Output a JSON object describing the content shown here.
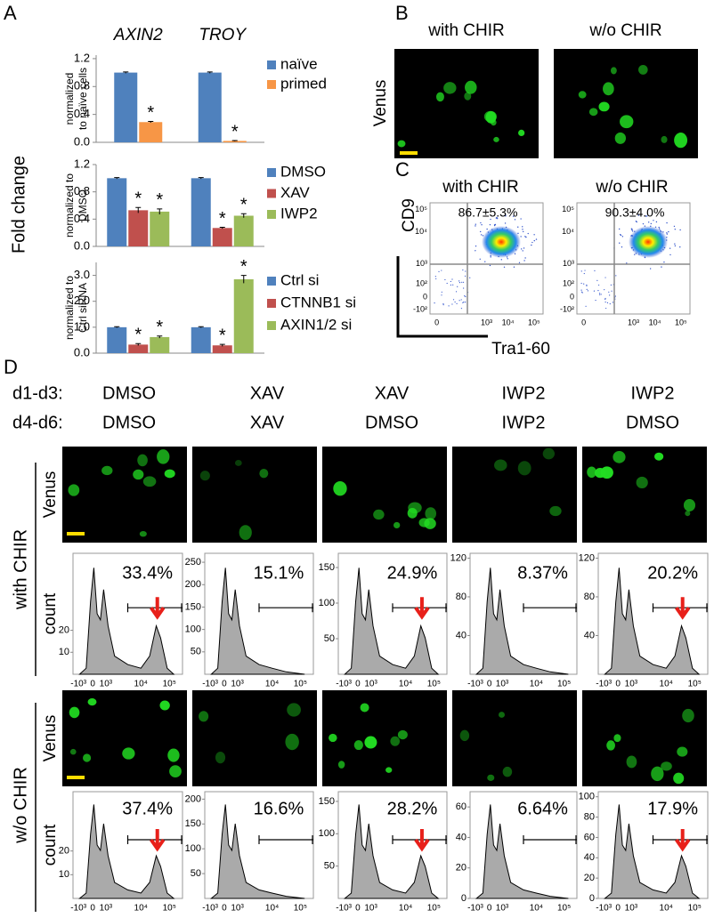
{
  "panel_labels": [
    "A",
    "B",
    "C",
    "D"
  ],
  "panel_a": {
    "y_title": "Fold change"
  },
  "chart_data": [
    {
      "type": "bar",
      "categories": [
        "AXIN2",
        "TROY"
      ],
      "y_label": [
        "normalized",
        "to naïve cells"
      ],
      "ylim": [
        0,
        1.25
      ],
      "yticks": [
        {
          "value": 0,
          "label": "0.0"
        },
        0.4,
        0.8,
        1.2
      ],
      "series": [
        {
          "name": "naïve",
          "color": "#4f81bd",
          "values": [
            1.0,
            1.0
          ],
          "errors": [
            0.01,
            0.01
          ],
          "annotations": [
            null,
            null
          ]
        },
        {
          "name": "primed",
          "color": "#f79646",
          "values": [
            0.29,
            0.02
          ],
          "errors": [
            0.01,
            0.005
          ],
          "annotations": [
            "*",
            "*"
          ]
        }
      ]
    },
    {
      "type": "bar",
      "y_label": [
        "normalized to",
        "DMSO"
      ],
      "ylim": [
        0,
        1.2
      ],
      "yticks": [
        {
          "value": 0,
          "label": "0.0"
        },
        0.4,
        0.8,
        1.2
      ],
      "series": [
        {
          "name": "DMSO",
          "color": "#4f81bd",
          "values": [
            1.0,
            1.0
          ],
          "errors": [
            0.01,
            0.01
          ],
          "annotations": [
            null,
            null
          ]
        },
        {
          "name": "XAV",
          "color": "#c0504d",
          "values": [
            0.53,
            0.27
          ],
          "errors": [
            0.04,
            0.01
          ],
          "annotations": [
            "*",
            "*"
          ]
        },
        {
          "name": "IWP2",
          "color": "#9bbb59",
          "values": [
            0.51,
            0.45
          ],
          "errors": [
            0.04,
            0.03
          ],
          "annotations": [
            "*",
            "*"
          ]
        }
      ]
    },
    {
      "type": "bar",
      "y_label": [
        "normalized to",
        "Ctrl siRNA"
      ],
      "ylim": [
        0,
        3.5
      ],
      "yticks": [
        {
          "value": 0,
          "label": "0.0"
        },
        {
          "value": 1,
          "label": "1.0"
        },
        {
          "value": 2,
          "label": "2.0"
        },
        {
          "value": 3,
          "label": "3.0"
        }
      ],
      "series": [
        {
          "name": "Ctrl si",
          "color": "#4f81bd",
          "values": [
            1.0,
            1.0
          ],
          "errors": [
            0.02,
            0.02
          ],
          "annotations": [
            null,
            null
          ]
        },
        {
          "name": "CTNNB1 si",
          "color": "#c0504d",
          "values": [
            0.33,
            0.3
          ],
          "errors": [
            0.04,
            0.04
          ],
          "annotations": [
            "*",
            "*"
          ]
        },
        {
          "name": "AXIN1/2 si",
          "color": "#9bbb59",
          "values": [
            0.62,
            2.85
          ],
          "errors": [
            0.04,
            0.15
          ],
          "annotations": [
            "*",
            "*"
          ]
        }
      ]
    }
  ],
  "panel_b": {
    "columns": [
      "with CHIR",
      "w/o CHIR"
    ],
    "row_label": "Venus"
  },
  "panel_c": {
    "columns": [
      "with CHIR",
      "w/o CHIR"
    ],
    "percentages": [
      "86.7±5.3%",
      "90.3±4.0%"
    ],
    "y_label": "CD9",
    "x_label": "Tra1-60",
    "yticks": [
      "10⁵",
      "10⁴",
      "10³",
      "10²",
      "0",
      "-10²"
    ],
    "xticks": [
      "0",
      "10³",
      "10⁴",
      "10⁵"
    ]
  },
  "panel_d": {
    "row_headers": [
      "d1-d3:",
      "d4-d6:"
    ],
    "d1_d3": [
      "DMSO",
      "XAV",
      "XAV",
      "IWP2",
      "IWP2"
    ],
    "d4_d6": [
      "DMSO",
      "XAV",
      "DMSO",
      "IWP2",
      "DMSO"
    ],
    "xticks": [
      "-10³",
      "0",
      "10³",
      "10⁴",
      "10⁵"
    ],
    "rows": [
      {
        "label": "with CHIR",
        "image_label": "Venus",
        "y_label": "count",
        "histograms": [
          {
            "percent": "33.4%",
            "ylim": [
              0,
              55
            ],
            "yticks": [
              10,
              20
            ]
          },
          {
            "percent": "15.1%",
            "ylim": [
              0,
              270
            ],
            "yticks": [
              50,
              100,
              150,
              200,
              250
            ]
          },
          {
            "percent": "24.9%",
            "ylim": [
              0,
              170
            ],
            "yticks": [
              50,
              100,
              150
            ]
          },
          {
            "percent": "8.37%",
            "ylim": [
              0,
              125
            ],
            "yticks": [
              40,
              80,
              120
            ]
          },
          {
            "percent": "20.2%",
            "ylim": [
              0,
              125
            ],
            "yticks": [
              40,
              80,
              120
            ]
          }
        ]
      },
      {
        "label": "w/o CHIR",
        "image_label": "Venus",
        "y_label": "count",
        "histograms": [
          {
            "percent": "37.4%",
            "ylim": [
              0,
              45
            ],
            "yticks": [
              10,
              20
            ]
          },
          {
            "percent": "16.6%",
            "ylim": [
              0,
              215
            ],
            "yticks": [
              50,
              100,
              150,
              200
            ]
          },
          {
            "percent": "28.2%",
            "ylim": [
              0,
              165
            ],
            "yticks": [
              50,
              100,
              150
            ]
          },
          {
            "percent": "6.64%",
            "ylim": [
              0,
              70
            ],
            "yticks": [
              0,
              20,
              40,
              60
            ]
          },
          {
            "percent": "17.9%",
            "ylim": [
              0,
              105
            ],
            "yticks": [
              0,
              20,
              40,
              60,
              80,
              100
            ]
          }
        ]
      }
    ]
  }
}
